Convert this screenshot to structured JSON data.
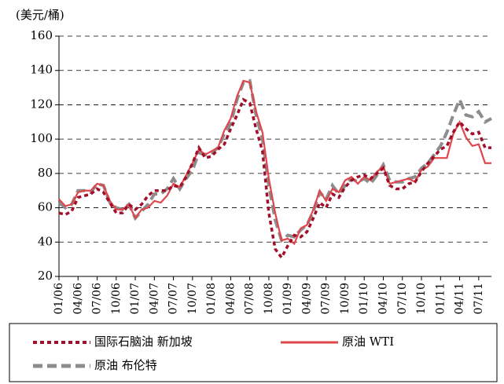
{
  "chart_data": {
    "type": "line",
    "y_unit": "(美元/桶)",
    "categories": [
      "01/06",
      null,
      null,
      "04/06",
      null,
      null,
      "07/06",
      null,
      null,
      "10/06",
      null,
      null,
      "01/07",
      null,
      null,
      "04/07",
      null,
      null,
      "07/07",
      null,
      null,
      "10/07",
      null,
      null,
      "01/08",
      null,
      null,
      "04/08",
      null,
      null,
      "07/08",
      null,
      null,
      "10/08",
      null,
      null,
      "01/09",
      null,
      null,
      "04/09",
      null,
      null,
      "07/09",
      null,
      null,
      "10/09",
      null,
      null,
      "01/10",
      null,
      null,
      "04/10",
      null,
      null,
      "07/10",
      null,
      null,
      "10/10",
      null,
      null,
      "01/11",
      null,
      null,
      "04/11",
      null,
      null,
      "07/11",
      null,
      null
    ],
    "series": [
      {
        "name": "国际石脑油 新加坡",
        "color": "#a0102a",
        "style": "dotted",
        "values": [
          57,
          56,
          58,
          66,
          67,
          68,
          71,
          69,
          63,
          57,
          57,
          62,
          59,
          62,
          67,
          70,
          70,
          70,
          73,
          72,
          78,
          86,
          95,
          89,
          90,
          94,
          97,
          106,
          114,
          123,
          121,
          106,
          93,
          57,
          36,
          31,
          38,
          44,
          43,
          46,
          54,
          63,
          60,
          68,
          66,
          72,
          76,
          78,
          79,
          77,
          80,
          83,
          73,
          71,
          71,
          74,
          75,
          81,
          86,
          90,
          94,
          96,
          104,
          110,
          106,
          103,
          104,
          95,
          95
        ]
      },
      {
        "name": "原油 WTI",
        "color": "#e0474c",
        "style": "solid",
        "values": [
          65,
          61,
          62,
          69,
          70,
          70,
          74,
          73,
          64,
          59,
          59,
          62,
          54,
          59,
          60,
          64,
          63,
          67,
          74,
          72,
          79,
          86,
          94,
          91,
          93,
          95,
          105,
          112,
          125,
          134,
          133,
          116,
          104,
          77,
          57,
          41,
          42,
          39,
          48,
          50,
          59,
          70,
          64,
          71,
          69,
          76,
          78,
          74,
          78,
          76,
          81,
          84,
          74,
          75,
          76,
          77,
          75,
          82,
          84,
          89,
          89,
          89,
          103,
          110,
          101,
          96,
          97,
          86,
          86
        ]
      },
      {
        "name": "原油 布伦特",
        "color": "#8c8c8c",
        "style": "dashed",
        "values": [
          63,
          60,
          62,
          70,
          70,
          69,
          74,
          73,
          63,
          60,
          59,
          62,
          54,
          58,
          62,
          68,
          68,
          71,
          77,
          71,
          77,
          82,
          92,
          91,
          92,
          95,
          103,
          109,
          123,
          133,
          134,
          114,
          100,
          73,
          53,
          41,
          44,
          43,
          47,
          50,
          58,
          69,
          65,
          73,
          68,
          73,
          77,
          75,
          77,
          74,
          79,
          85,
          76,
          75,
          75,
          77,
          78,
          83,
          86,
          91,
          96,
          104,
          114,
          123,
          114,
          113,
          116,
          110,
          112
        ]
      }
    ],
    "ylim": [
      20,
      160
    ],
    "yticks": [
      20,
      40,
      60,
      80,
      100,
      120,
      140,
      160
    ],
    "grid": true
  }
}
